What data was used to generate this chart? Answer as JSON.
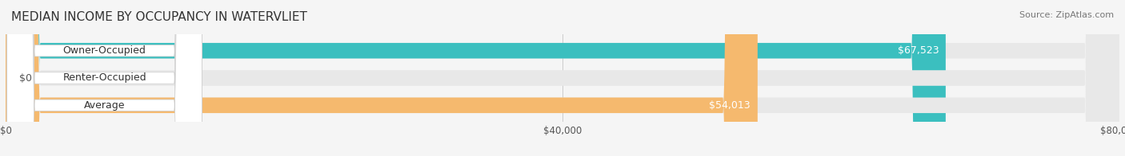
{
  "title": "MEDIAN INCOME BY OCCUPANCY IN WATERVLIET",
  "source": "Source: ZipAtlas.com",
  "categories": [
    "Owner-Occupied",
    "Renter-Occupied",
    "Average"
  ],
  "values": [
    67523,
    0,
    54013
  ],
  "bar_colors": [
    "#3bbfbf",
    "#c9a8d4",
    "#f5b96e"
  ],
  "label_colors": [
    "#3bbfbf",
    "#c9a8d4",
    "#f5b96e"
  ],
  "value_labels": [
    "$67,523",
    "$0",
    "$54,013"
  ],
  "xlim": [
    0,
    80000
  ],
  "xticks": [
    0,
    40000,
    80000
  ],
  "xtick_labels": [
    "$0",
    "$40,000",
    "$80,000"
  ],
  "bar_height": 0.55,
  "background_color": "#f5f5f5",
  "bar_background_color": "#e8e8e8",
  "title_fontsize": 11,
  "source_fontsize": 8,
  "label_fontsize": 9,
  "value_fontsize": 9
}
